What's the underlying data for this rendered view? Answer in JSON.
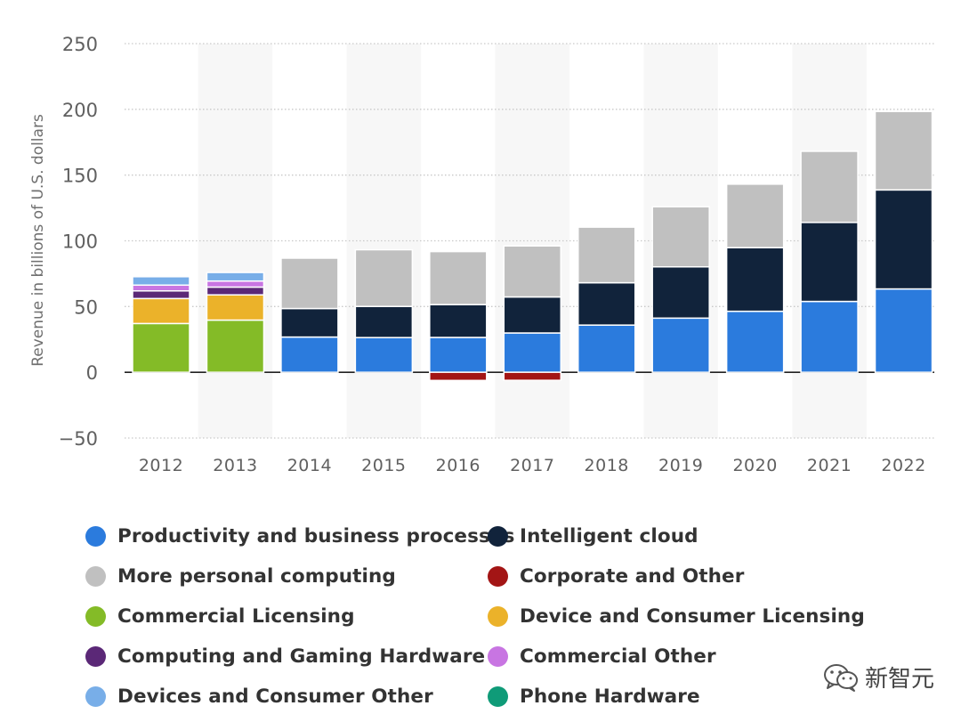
{
  "chart_data": {
    "type": "bar",
    "stacked": true,
    "title": "",
    "xlabel": "",
    "ylabel": "Revenue in billions of U.S. dollars",
    "ylim": [
      -50,
      250
    ],
    "yticks": [
      250,
      200,
      150,
      100,
      50,
      0,
      -50
    ],
    "categories": [
      "2012",
      "2013",
      "2014",
      "2015",
      "2016",
      "2017",
      "2018",
      "2019",
      "2020",
      "2021",
      "2022"
    ],
    "series": [
      {
        "name": "Productivity and business processes",
        "color": "#2b7bdd",
        "values": [
          0,
          0,
          26.8,
          26.4,
          26.5,
          29.9,
          35.9,
          41.2,
          46.4,
          53.9,
          63.4
        ]
      },
      {
        "name": "Intelligent cloud",
        "color": "#11233b",
        "values": [
          0,
          0,
          21.7,
          23.7,
          25.0,
          27.4,
          32.2,
          39.0,
          48.4,
          60.1,
          75.3
        ]
      },
      {
        "name": "More personal computing",
        "color": "#c0c0c0",
        "values": [
          0,
          0,
          38.3,
          43.1,
          40.3,
          38.8,
          42.3,
          45.7,
          48.3,
          54.1,
          59.7
        ]
      },
      {
        "name": "Corporate and Other",
        "color": "#a31515",
        "values": [
          0,
          0,
          0,
          0,
          -6.2,
          -6.1,
          0,
          0,
          0,
          0,
          0
        ]
      },
      {
        "name": "Commercial Licensing",
        "color": "#84bb27",
        "values": [
          37.1,
          39.7,
          0,
          0,
          0,
          0,
          0,
          0,
          0,
          0,
          0
        ]
      },
      {
        "name": "Device and Consumer Licensing",
        "color": "#ebb22a",
        "values": [
          19.0,
          19.2,
          0,
          0,
          0,
          0,
          0,
          0,
          0,
          0,
          0
        ]
      },
      {
        "name": "Computing and Gaming Hardware",
        "color": "#5b2877",
        "values": [
          5.8,
          5.9,
          0,
          0,
          0,
          0,
          0,
          0,
          0,
          0,
          0
        ]
      },
      {
        "name": "Commercial Other",
        "color": "#c875e2",
        "values": [
          4.4,
          4.6,
          0,
          0,
          0,
          0,
          0,
          0,
          0,
          0,
          0
        ]
      },
      {
        "name": "Devices and Consumer Other",
        "color": "#78aee8",
        "values": [
          6.4,
          6.5,
          0,
          0,
          0,
          0,
          0,
          0,
          0,
          0,
          0
        ]
      },
      {
        "name": "Phone Hardware",
        "color": "#0f9b78",
        "values": [
          0,
          0,
          0,
          0,
          0,
          0,
          0,
          0,
          0,
          0,
          0
        ]
      }
    ]
  },
  "legend": [
    {
      "label": "Productivity and business processes",
      "color": "#2b7bdd"
    },
    {
      "label": "Intelligent cloud",
      "color": "#11233b"
    },
    {
      "label": "More personal computing",
      "color": "#c0c0c0"
    },
    {
      "label": "Corporate and Other",
      "color": "#a31515"
    },
    {
      "label": "Commercial Licensing",
      "color": "#84bb27"
    },
    {
      "label": "Device and Consumer Licensing",
      "color": "#ebb22a"
    },
    {
      "label": "Computing and Gaming Hardware",
      "color": "#5b2877"
    },
    {
      "label": "Commercial Other",
      "color": "#c875e2"
    },
    {
      "label": "Devices and Consumer Other",
      "color": "#78aee8"
    },
    {
      "label": "Phone Hardware",
      "color": "#0f9b78"
    }
  ],
  "watermark": {
    "text": "新智元",
    "icon": "wechat-icon"
  }
}
